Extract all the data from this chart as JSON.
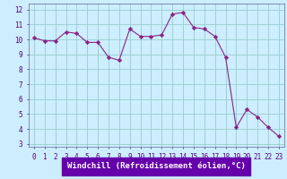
{
  "x": [
    0,
    1,
    2,
    3,
    4,
    5,
    6,
    7,
    8,
    9,
    10,
    11,
    12,
    13,
    14,
    15,
    16,
    17,
    18,
    19,
    20,
    21,
    22,
    23
  ],
  "y": [
    10.1,
    9.9,
    9.9,
    10.5,
    10.4,
    9.8,
    9.8,
    8.8,
    8.6,
    10.7,
    10.2,
    10.2,
    10.3,
    11.7,
    11.8,
    10.8,
    10.7,
    10.2,
    8.8,
    4.1,
    5.3,
    4.8,
    4.1,
    3.5
  ],
  "line_color": "#882288",
  "marker": "D",
  "marker_size": 2.2,
  "bg_color": "#cceeff",
  "grid_color": "#99cccc",
  "xlabel": "Windchill (Refroidissement éolien,°C)",
  "xlabel_bg": "#6600aa",
  "xlabel_fontsize": 6.5,
  "ylabel_ticks": [
    3,
    4,
    5,
    6,
    7,
    8,
    9,
    10,
    11,
    12
  ],
  "xlim": [
    -0.5,
    23.5
  ],
  "ylim": [
    2.8,
    12.4
  ],
  "tick_fontsize": 5.5,
  "xtick_labels": [
    "0",
    "1",
    "2",
    "3",
    "4",
    "5",
    "6",
    "7",
    "8",
    "9",
    "10",
    "11",
    "12",
    "13",
    "14",
    "15",
    "16",
    "17",
    "18",
    "19",
    "20",
    "21",
    "22",
    "23"
  ]
}
